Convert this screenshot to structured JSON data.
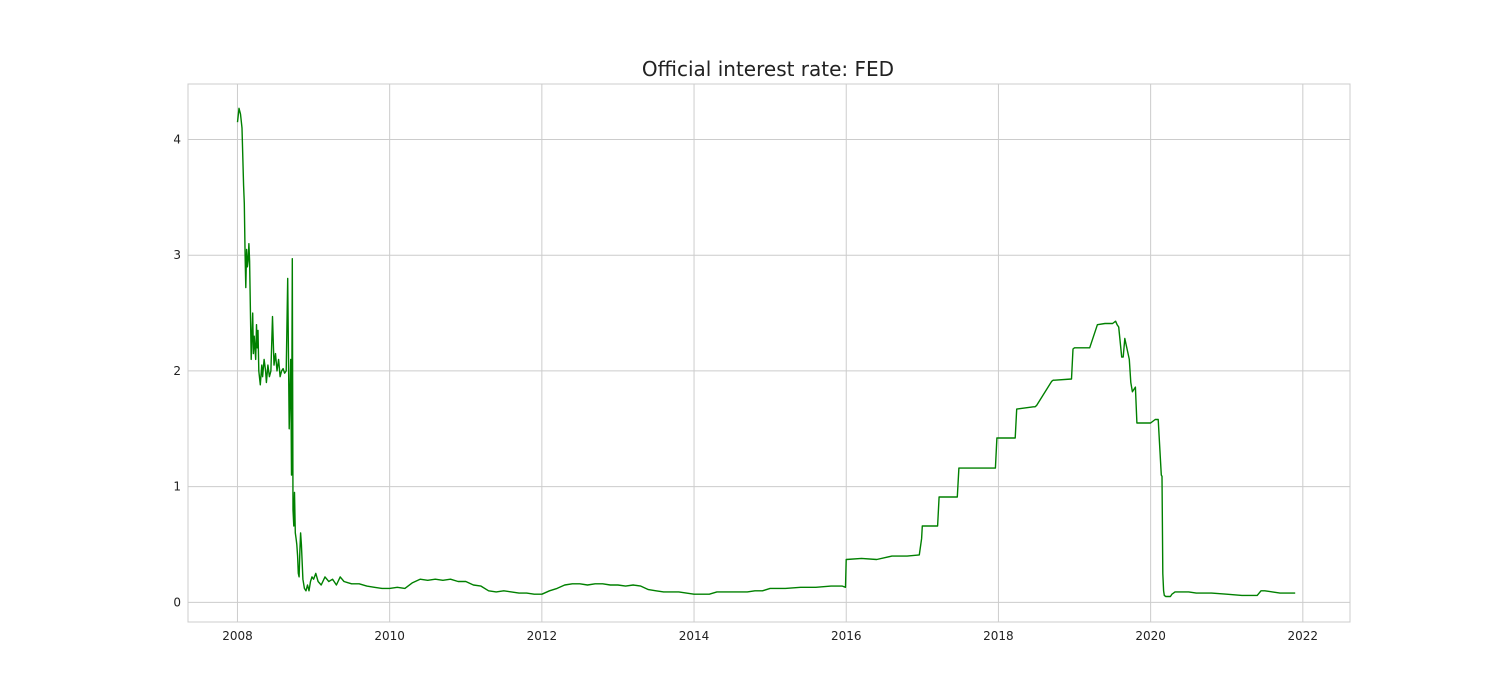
{
  "chart_data": {
    "type": "line",
    "title": "Official interest rate: FED",
    "xlabel": "",
    "ylabel": "",
    "xlim": [
      2007.35,
      2022.62
    ],
    "ylim": [
      -0.17,
      4.48
    ],
    "x_ticks": [
      2008,
      2010,
      2012,
      2014,
      2016,
      2018,
      2020,
      2022
    ],
    "x_tick_labels": [
      "2008",
      "2010",
      "2012",
      "2014",
      "2016",
      "2018",
      "2020",
      "2022"
    ],
    "y_ticks": [
      0,
      1,
      2,
      3,
      4
    ],
    "y_tick_labels": [
      "0",
      "1",
      "2",
      "3",
      "4"
    ],
    "grid": true,
    "legend": "none",
    "colors": {
      "line": "#008000",
      "grid": "#cccccc",
      "axes_edge": "#cccccc",
      "text": "#222222"
    },
    "series": [
      {
        "x": [
          2008.0,
          2008.02,
          2008.04,
          2008.06,
          2008.08,
          2008.09,
          2008.1,
          2008.11,
          2008.12,
          2008.13,
          2008.14,
          2008.15,
          2008.16,
          2008.18,
          2008.2,
          2008.21,
          2008.22,
          2008.24,
          2008.25,
          2008.26,
          2008.27,
          2008.28,
          2008.3,
          2008.32,
          2008.33,
          2008.35,
          2008.37,
          2008.38,
          2008.4,
          2008.42,
          2008.44,
          2008.46,
          2008.48,
          2008.5,
          2008.52,
          2008.54,
          2008.56,
          2008.58,
          2008.6,
          2008.62,
          2008.64,
          2008.66,
          2008.68,
          2008.7,
          2008.71,
          2008.72,
          2008.73,
          2008.74,
          2008.75,
          2008.76,
          2008.77,
          2008.78,
          2008.79,
          2008.8,
          2008.81,
          2008.82,
          2008.83,
          2008.84,
          2008.86,
          2008.88,
          2008.9,
          2008.92,
          2008.94,
          2008.96,
          2008.98,
          2009.0,
          2009.03,
          2009.06,
          2009.1,
          2009.15,
          2009.2,
          2009.25,
          2009.3,
          2009.35,
          2009.4,
          2009.45,
          2009.5,
          2009.6,
          2009.7,
          2009.8,
          2009.9,
          2010.0,
          2010.1,
          2010.2,
          2010.3,
          2010.4,
          2010.5,
          2010.6,
          2010.7,
          2010.8,
          2010.9,
          2011.0,
          2011.1,
          2011.2,
          2011.3,
          2011.4,
          2011.5,
          2011.6,
          2011.7,
          2011.8,
          2011.9,
          2012.0,
          2012.1,
          2012.2,
          2012.3,
          2012.4,
          2012.5,
          2012.6,
          2012.7,
          2012.8,
          2012.9,
          2013.0,
          2013.1,
          2013.2,
          2013.3,
          2013.4,
          2013.5,
          2013.6,
          2013.7,
          2013.8,
          2013.9,
          2014.0,
          2014.1,
          2014.2,
          2014.3,
          2014.4,
          2014.5,
          2014.6,
          2014.7,
          2014.8,
          2014.9,
          2015.0,
          2015.2,
          2015.4,
          2015.6,
          2015.8,
          2015.95,
          2015.99,
          2016.0,
          2016.2,
          2016.4,
          2016.6,
          2016.8,
          2016.96,
          2016.99,
          2017.0,
          2017.2,
          2017.22,
          2017.24,
          2017.46,
          2017.48,
          2017.5,
          2017.7,
          2017.9,
          2017.96,
          2017.98,
          2018.0,
          2018.2,
          2018.22,
          2018.24,
          2018.46,
          2018.48,
          2018.5,
          2018.7,
          2018.72,
          2018.74,
          2018.96,
          2018.98,
          2019.0,
          2019.2,
          2019.3,
          2019.4,
          2019.5,
          2019.54,
          2019.56,
          2019.58,
          2019.62,
          2019.64,
          2019.66,
          2019.72,
          2019.74,
          2019.76,
          2019.8,
          2019.82,
          2019.84,
          2019.9,
          2020.0,
          2020.06,
          2020.08,
          2020.1,
          2020.14,
          2020.15,
          2020.16,
          2020.17,
          2020.18,
          2020.2,
          2020.22,
          2020.24,
          2020.26,
          2020.28,
          2020.3,
          2020.32,
          2020.34,
          2020.4,
          2020.5,
          2020.6,
          2020.8,
          2021.0,
          2021.2,
          2021.4,
          2021.45,
          2021.5,
          2021.6,
          2021.7,
          2021.8,
          2021.9
        ],
        "y": [
          4.15,
          4.27,
          4.22,
          4.1,
          3.6,
          3.45,
          3.0,
          2.72,
          3.05,
          2.9,
          2.95,
          3.1,
          2.95,
          2.1,
          2.5,
          2.15,
          2.3,
          2.1,
          2.4,
          2.2,
          2.35,
          2.0,
          1.88,
          2.05,
          1.95,
          2.1,
          2.0,
          1.9,
          2.05,
          1.95,
          2.0,
          2.47,
          2.05,
          2.15,
          2.0,
          2.1,
          1.95,
          2.0,
          2.02,
          1.98,
          2.0,
          2.8,
          1.5,
          2.1,
          1.1,
          2.97,
          0.8,
          0.66,
          0.95,
          0.6,
          0.55,
          0.5,
          0.4,
          0.25,
          0.22,
          0.45,
          0.6,
          0.5,
          0.2,
          0.12,
          0.1,
          0.15,
          0.1,
          0.18,
          0.22,
          0.2,
          0.25,
          0.18,
          0.15,
          0.22,
          0.18,
          0.2,
          0.15,
          0.22,
          0.18,
          0.17,
          0.16,
          0.16,
          0.14,
          0.13,
          0.12,
          0.12,
          0.13,
          0.12,
          0.17,
          0.2,
          0.19,
          0.2,
          0.19,
          0.2,
          0.18,
          0.18,
          0.15,
          0.14,
          0.1,
          0.09,
          0.1,
          0.09,
          0.08,
          0.08,
          0.07,
          0.07,
          0.1,
          0.12,
          0.15,
          0.16,
          0.16,
          0.15,
          0.16,
          0.16,
          0.15,
          0.15,
          0.14,
          0.15,
          0.14,
          0.11,
          0.1,
          0.09,
          0.09,
          0.09,
          0.08,
          0.07,
          0.07,
          0.07,
          0.09,
          0.09,
          0.09,
          0.09,
          0.09,
          0.1,
          0.1,
          0.12,
          0.12,
          0.13,
          0.13,
          0.14,
          0.14,
          0.13,
          0.37,
          0.38,
          0.37,
          0.4,
          0.4,
          0.41,
          0.55,
          0.66,
          0.66,
          0.91,
          0.91,
          0.91,
          1.16,
          1.16,
          1.16,
          1.16,
          1.16,
          1.42,
          1.42,
          1.42,
          1.42,
          1.67,
          1.69,
          1.69,
          1.7,
          1.91,
          1.92,
          1.92,
          1.93,
          2.19,
          2.2,
          2.2,
          2.4,
          2.41,
          2.41,
          2.43,
          2.4,
          2.38,
          2.12,
          2.12,
          2.28,
          2.1,
          1.9,
          1.82,
          1.86,
          1.55,
          1.55,
          1.55,
          1.55,
          1.58,
          1.58,
          1.58,
          1.1,
          1.09,
          0.25,
          0.1,
          0.06,
          0.05,
          0.05,
          0.05,
          0.05,
          0.07,
          0.08,
          0.09,
          0.09,
          0.09,
          0.09,
          0.08,
          0.08,
          0.07,
          0.06,
          0.06,
          0.1,
          0.1,
          0.09,
          0.08,
          0.08,
          0.08
        ]
      }
    ]
  }
}
